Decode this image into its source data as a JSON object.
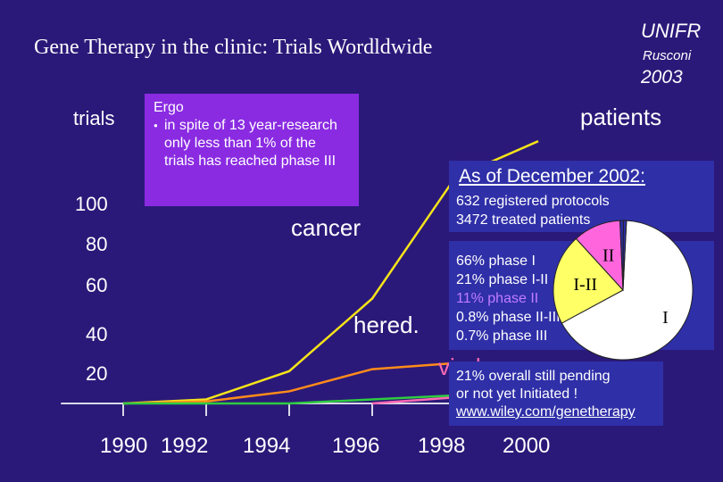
{
  "header": {
    "title": "Gene Therapy in the clinic: Trials Wordldwide",
    "institution": "UNIFR",
    "author": "Rusconi",
    "year": "2003"
  },
  "colors": {
    "background": "#2b1979",
    "patients_line": "#f5e31a",
    "cancer_line": "#ff8c1a",
    "green_line": "#2ecc40",
    "pink_line": "#ff69b4",
    "purple_box": "#8a2be2",
    "blue_box": "#2f2fa8"
  },
  "ergo": {
    "heading": "Ergo",
    "bullet": "in spite of 13 year-research only less than 1% of the trials has reached phase III"
  },
  "status": {
    "as_of": "As of December 2002:",
    "protocols": "632 registered protocols",
    "patients": "3472 treated patients"
  },
  "phases": {
    "list": [
      {
        "text": "66% phase I",
        "color": "#ffffff"
      },
      {
        "text": "21% phase I-II",
        "color": "#ffffff"
      },
      {
        "text": "11% phase II",
        "color": "#c07cff"
      },
      {
        "text": "0.8% phase II-III",
        "color": "#ffffff"
      },
      {
        "text": "0.7% phase III",
        "color": "#ffffff"
      }
    ]
  },
  "pending": {
    "line1": "21% overall  still pending",
    "line2": "or not  yet Initiated !",
    "url": "www.wiley.com/genetherapy"
  },
  "chart_data": {
    "type": "line",
    "ylabel": "trials",
    "yticks": [
      20,
      40,
      60,
      80,
      100
    ],
    "ylim": [
      0,
      120
    ],
    "xticks": [
      "1990",
      "1992",
      "1994",
      "1996",
      "1998",
      "2000"
    ],
    "xlim": [
      1988.5,
      2001
    ],
    "series": [
      {
        "name": "patients",
        "color": "#f5e31a",
        "x": [
          1990,
          1992,
          1994,
          1996,
          1998,
          2000
        ],
        "y": [
          0,
          2,
          16,
          52,
          112,
          130
        ]
      },
      {
        "name": "cancer",
        "color": "#ff8c1a",
        "x": [
          1990,
          1992,
          1994,
          1996,
          1998
        ],
        "y": [
          0,
          1,
          6,
          17,
          20
        ]
      },
      {
        "color": "#2ecc40",
        "x": [
          1990,
          1994,
          1998
        ],
        "y": [
          0,
          0,
          4
        ]
      },
      {
        "color": "#ff69b4",
        "x": [
          1996,
          1998
        ],
        "y": [
          0,
          3
        ]
      }
    ],
    "annotations": [
      "patients",
      "cancer",
      "hered.",
      "viral"
    ],
    "pie": {
      "slices": [
        {
          "label": "I",
          "value": 66,
          "color": "#ffffff"
        },
        {
          "label": "I-II",
          "value": 21,
          "color": "#ffff66"
        },
        {
          "label": "II",
          "value": 11,
          "color": "#ff66dd"
        },
        {
          "label": "II-III",
          "value": 0.8,
          "color": "#2f2fa8"
        },
        {
          "label": "III",
          "value": 0.7,
          "color": "#2f2fa8"
        }
      ]
    }
  }
}
